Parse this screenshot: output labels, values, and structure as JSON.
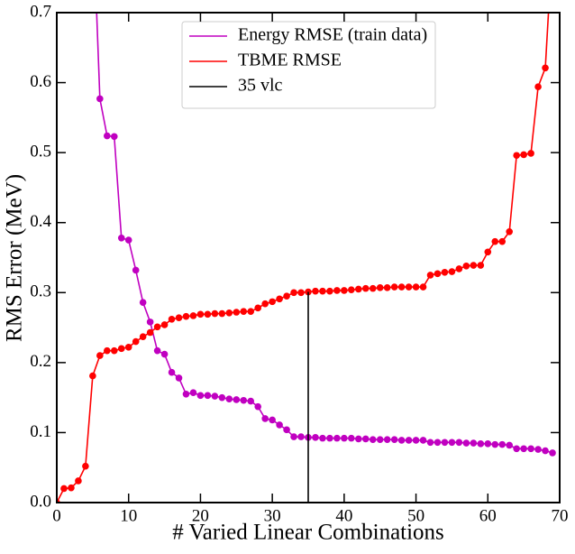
{
  "chart_data": {
    "type": "line",
    "xlabel": "# Varied Linear Combinations",
    "ylabel": "RMS Error (MeV)",
    "xlim": [
      0,
      70
    ],
    "ylim": [
      0,
      0.7
    ],
    "xticks": [
      0,
      10,
      20,
      30,
      40,
      50,
      60,
      70
    ],
    "yticks": [
      {
        "value": 0,
        "label": "0.0"
      },
      {
        "value": 0.1,
        "label": "0.1"
      },
      {
        "value": 0.2,
        "label": "0.2"
      },
      {
        "value": 0.3,
        "label": "0.3"
      },
      {
        "value": 0.4,
        "label": "0.4"
      },
      {
        "value": 0.5,
        "label": "0.5"
      },
      {
        "value": 0.6,
        "label": "0.6"
      },
      {
        "value": 0.7,
        "label": "0.7"
      }
    ],
    "legend_position": "upper center",
    "series": [
      {
        "name": "Energy RMSE (train data)",
        "color": "#c000c0",
        "markers": true,
        "x": [
          5,
          6,
          7,
          8,
          9,
          10,
          11,
          12,
          13,
          14,
          15,
          16,
          17,
          18,
          19,
          20,
          21,
          22,
          23,
          24,
          25,
          26,
          27,
          28,
          29,
          30,
          31,
          32,
          33,
          34,
          35,
          36,
          37,
          38,
          39,
          40,
          41,
          42,
          43,
          44,
          45,
          46,
          47,
          48,
          49,
          50,
          51,
          52,
          53,
          54,
          55,
          56,
          57,
          58,
          59,
          60,
          61,
          62,
          63,
          64,
          65,
          66,
          67,
          68,
          69
        ],
        "values": [
          0.85,
          0.577,
          0.524,
          0.523,
          0.378,
          0.375,
          0.332,
          0.286,
          0.258,
          0.217,
          0.212,
          0.186,
          0.178,
          0.155,
          0.157,
          0.153,
          0.153,
          0.152,
          0.15,
          0.148,
          0.147,
          0.146,
          0.145,
          0.137,
          0.12,
          0.118,
          0.111,
          0.104,
          0.094,
          0.094,
          0.093,
          0.093,
          0.092,
          0.092,
          0.092,
          0.092,
          0.092,
          0.091,
          0.091,
          0.09,
          0.09,
          0.09,
          0.09,
          0.089,
          0.089,
          0.089,
          0.089,
          0.086,
          0.086,
          0.086,
          0.086,
          0.086,
          0.085,
          0.085,
          0.084,
          0.084,
          0.083,
          0.083,
          0.082,
          0.077,
          0.077,
          0.077,
          0.076,
          0.074,
          0.071
        ]
      },
      {
        "name": "TBME RMSE",
        "color": "#ff0000",
        "markers": true,
        "x": [
          0,
          1,
          2,
          3,
          4,
          5,
          6,
          7,
          8,
          9,
          10,
          11,
          12,
          13,
          14,
          15,
          16,
          17,
          18,
          19,
          20,
          21,
          22,
          23,
          24,
          25,
          26,
          27,
          28,
          29,
          30,
          31,
          32,
          33,
          34,
          35,
          36,
          37,
          38,
          39,
          40,
          41,
          42,
          43,
          44,
          45,
          46,
          47,
          48,
          49,
          50,
          51,
          52,
          53,
          54,
          55,
          56,
          57,
          58,
          59,
          60,
          61,
          62,
          63,
          64,
          65,
          66,
          67,
          68,
          69
        ],
        "values": [
          0.0,
          0.02,
          0.021,
          0.031,
          0.052,
          0.181,
          0.21,
          0.217,
          0.217,
          0.22,
          0.222,
          0.23,
          0.237,
          0.243,
          0.251,
          0.254,
          0.262,
          0.264,
          0.266,
          0.267,
          0.269,
          0.269,
          0.27,
          0.27,
          0.271,
          0.272,
          0.273,
          0.273,
          0.278,
          0.284,
          0.287,
          0.291,
          0.295,
          0.3,
          0.3,
          0.301,
          0.302,
          0.302,
          0.302,
          0.303,
          0.303,
          0.304,
          0.305,
          0.306,
          0.306,
          0.307,
          0.307,
          0.308,
          0.308,
          0.308,
          0.308,
          0.308,
          0.325,
          0.327,
          0.329,
          0.33,
          0.334,
          0.338,
          0.339,
          0.339,
          0.358,
          0.373,
          0.373,
          0.387,
          0.496,
          0.497,
          0.499,
          0.594,
          0.621,
          0.8
        ]
      },
      {
        "name": "35 vlc",
        "color": "#000000",
        "markers": false,
        "x": [
          35,
          35
        ],
        "values": [
          0,
          0.301
        ]
      }
    ]
  }
}
